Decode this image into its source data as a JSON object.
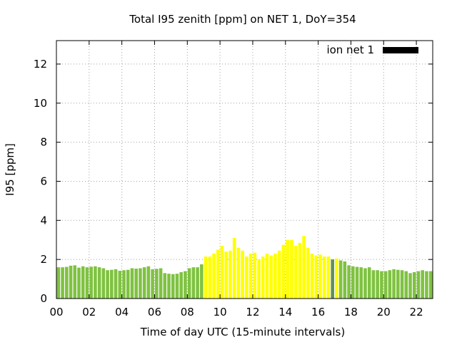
{
  "chart_data": {
    "type": "bar",
    "title": "Total I95 zenith [ppm] on NET 1, DoY=354",
    "xlabel": "Time of day UTC (15-minute intervals)",
    "ylabel": "I95 [ppm]",
    "xlim": [
      0,
      23
    ],
    "ylim": [
      0,
      13.2
    ],
    "grid": true,
    "legend": {
      "label": "ion net 1",
      "position": "top-right"
    },
    "x_ticks": [
      {
        "value": 0,
        "label": "00"
      },
      {
        "value": 2,
        "label": "02"
      },
      {
        "value": 4,
        "label": "04"
      },
      {
        "value": 6,
        "label": "06"
      },
      {
        "value": 8,
        "label": "08"
      },
      {
        "value": 10,
        "label": "10"
      },
      {
        "value": 12,
        "label": "12"
      },
      {
        "value": 14,
        "label": "14"
      },
      {
        "value": 16,
        "label": "16"
      },
      {
        "value": 18,
        "label": "18"
      },
      {
        "value": 20,
        "label": "20"
      },
      {
        "value": 22,
        "label": "22"
      }
    ],
    "y_ticks": [
      {
        "value": 0,
        "label": "0"
      },
      {
        "value": 2,
        "label": "2"
      },
      {
        "value": 4,
        "label": "4"
      },
      {
        "value": 6,
        "label": "6"
      },
      {
        "value": 8,
        "label": "8"
      },
      {
        "value": 10,
        "label": "10"
      },
      {
        "value": 12,
        "label": "12"
      }
    ],
    "colors": {
      "green": "#7fc241",
      "yellow": "#ffff00",
      "grey": "#5e8f5c",
      "legend": "#000000"
    },
    "bar_width_hours": 0.2,
    "bars": [
      {
        "x": 0.125,
        "v": 1.6,
        "c": "green"
      },
      {
        "x": 0.375,
        "v": 1.6,
        "c": "green"
      },
      {
        "x": 0.625,
        "v": 1.62,
        "c": "green"
      },
      {
        "x": 0.875,
        "v": 1.68,
        "c": "green"
      },
      {
        "x": 1.125,
        "v": 1.7,
        "c": "green"
      },
      {
        "x": 1.375,
        "v": 1.58,
        "c": "green"
      },
      {
        "x": 1.625,
        "v": 1.65,
        "c": "green"
      },
      {
        "x": 1.875,
        "v": 1.6,
        "c": "green"
      },
      {
        "x": 2.125,
        "v": 1.63,
        "c": "green"
      },
      {
        "x": 2.375,
        "v": 1.65,
        "c": "green"
      },
      {
        "x": 2.625,
        "v": 1.6,
        "c": "green"
      },
      {
        "x": 2.875,
        "v": 1.55,
        "c": "green"
      },
      {
        "x": 3.125,
        "v": 1.45,
        "c": "green"
      },
      {
        "x": 3.375,
        "v": 1.47,
        "c": "green"
      },
      {
        "x": 3.625,
        "v": 1.5,
        "c": "green"
      },
      {
        "x": 3.875,
        "v": 1.42,
        "c": "green"
      },
      {
        "x": 4.125,
        "v": 1.45,
        "c": "green"
      },
      {
        "x": 4.375,
        "v": 1.47,
        "c": "green"
      },
      {
        "x": 4.625,
        "v": 1.55,
        "c": "green"
      },
      {
        "x": 4.875,
        "v": 1.53,
        "c": "green"
      },
      {
        "x": 5.125,
        "v": 1.55,
        "c": "green"
      },
      {
        "x": 5.375,
        "v": 1.6,
        "c": "green"
      },
      {
        "x": 5.625,
        "v": 1.65,
        "c": "green"
      },
      {
        "x": 5.875,
        "v": 1.5,
        "c": "green"
      },
      {
        "x": 6.125,
        "v": 1.52,
        "c": "green"
      },
      {
        "x": 6.375,
        "v": 1.55,
        "c": "green"
      },
      {
        "x": 6.625,
        "v": 1.3,
        "c": "green"
      },
      {
        "x": 6.875,
        "v": 1.27,
        "c": "green"
      },
      {
        "x": 7.125,
        "v": 1.25,
        "c": "green"
      },
      {
        "x": 7.375,
        "v": 1.27,
        "c": "green"
      },
      {
        "x": 7.625,
        "v": 1.35,
        "c": "green"
      },
      {
        "x": 7.875,
        "v": 1.4,
        "c": "green"
      },
      {
        "x": 8.125,
        "v": 1.55,
        "c": "green"
      },
      {
        "x": 8.375,
        "v": 1.6,
        "c": "green"
      },
      {
        "x": 8.625,
        "v": 1.6,
        "c": "green"
      },
      {
        "x": 8.875,
        "v": 1.75,
        "c": "green"
      },
      {
        "x": 9.125,
        "v": 2.15,
        "c": "yellow"
      },
      {
        "x": 9.375,
        "v": 2.15,
        "c": "yellow"
      },
      {
        "x": 9.625,
        "v": 2.3,
        "c": "yellow"
      },
      {
        "x": 9.875,
        "v": 2.5,
        "c": "yellow"
      },
      {
        "x": 10.125,
        "v": 2.7,
        "c": "yellow"
      },
      {
        "x": 10.375,
        "v": 2.4,
        "c": "yellow"
      },
      {
        "x": 10.625,
        "v": 2.45,
        "c": "yellow"
      },
      {
        "x": 10.875,
        "v": 3.1,
        "c": "yellow"
      },
      {
        "x": 11.125,
        "v": 2.6,
        "c": "yellow"
      },
      {
        "x": 11.375,
        "v": 2.45,
        "c": "yellow"
      },
      {
        "x": 11.625,
        "v": 2.15,
        "c": "yellow"
      },
      {
        "x": 11.875,
        "v": 2.3,
        "c": "yellow"
      },
      {
        "x": 12.125,
        "v": 2.35,
        "c": "yellow"
      },
      {
        "x": 12.375,
        "v": 2.0,
        "c": "yellow"
      },
      {
        "x": 12.625,
        "v": 2.15,
        "c": "yellow"
      },
      {
        "x": 12.875,
        "v": 2.3,
        "c": "yellow"
      },
      {
        "x": 13.125,
        "v": 2.2,
        "c": "yellow"
      },
      {
        "x": 13.375,
        "v": 2.3,
        "c": "yellow"
      },
      {
        "x": 13.625,
        "v": 2.45,
        "c": "yellow"
      },
      {
        "x": 13.875,
        "v": 2.75,
        "c": "yellow"
      },
      {
        "x": 14.125,
        "v": 3.0,
        "c": "yellow"
      },
      {
        "x": 14.375,
        "v": 3.0,
        "c": "yellow"
      },
      {
        "x": 14.625,
        "v": 2.7,
        "c": "yellow"
      },
      {
        "x": 14.875,
        "v": 2.85,
        "c": "yellow"
      },
      {
        "x": 15.125,
        "v": 3.2,
        "c": "yellow"
      },
      {
        "x": 15.375,
        "v": 2.6,
        "c": "yellow"
      },
      {
        "x": 15.625,
        "v": 2.3,
        "c": "yellow"
      },
      {
        "x": 15.875,
        "v": 2.2,
        "c": "yellow"
      },
      {
        "x": 16.125,
        "v": 2.25,
        "c": "yellow"
      },
      {
        "x": 16.375,
        "v": 2.15,
        "c": "yellow"
      },
      {
        "x": 16.625,
        "v": 2.15,
        "c": "yellow"
      },
      {
        "x": 16.875,
        "v": 2.0,
        "c": "grey"
      },
      {
        "x": 17.125,
        "v": 2.05,
        "c": "yellow"
      },
      {
        "x": 17.375,
        "v": 1.95,
        "c": "green"
      },
      {
        "x": 17.625,
        "v": 1.9,
        "c": "green"
      },
      {
        "x": 17.875,
        "v": 1.7,
        "c": "green"
      },
      {
        "x": 18.125,
        "v": 1.65,
        "c": "green"
      },
      {
        "x": 18.375,
        "v": 1.62,
        "c": "green"
      },
      {
        "x": 18.625,
        "v": 1.6,
        "c": "green"
      },
      {
        "x": 18.875,
        "v": 1.55,
        "c": "green"
      },
      {
        "x": 19.125,
        "v": 1.6,
        "c": "green"
      },
      {
        "x": 19.375,
        "v": 1.45,
        "c": "green"
      },
      {
        "x": 19.625,
        "v": 1.45,
        "c": "green"
      },
      {
        "x": 19.875,
        "v": 1.4,
        "c": "green"
      },
      {
        "x": 20.125,
        "v": 1.4,
        "c": "green"
      },
      {
        "x": 20.375,
        "v": 1.45,
        "c": "green"
      },
      {
        "x": 20.625,
        "v": 1.5,
        "c": "green"
      },
      {
        "x": 20.875,
        "v": 1.47,
        "c": "green"
      },
      {
        "x": 21.125,
        "v": 1.45,
        "c": "green"
      },
      {
        "x": 21.375,
        "v": 1.4,
        "c": "green"
      },
      {
        "x": 21.625,
        "v": 1.3,
        "c": "green"
      },
      {
        "x": 21.875,
        "v": 1.35,
        "c": "green"
      },
      {
        "x": 22.125,
        "v": 1.4,
        "c": "green"
      },
      {
        "x": 22.375,
        "v": 1.45,
        "c": "green"
      },
      {
        "x": 22.625,
        "v": 1.4,
        "c": "green"
      },
      {
        "x": 22.875,
        "v": 1.4,
        "c": "green"
      }
    ]
  }
}
